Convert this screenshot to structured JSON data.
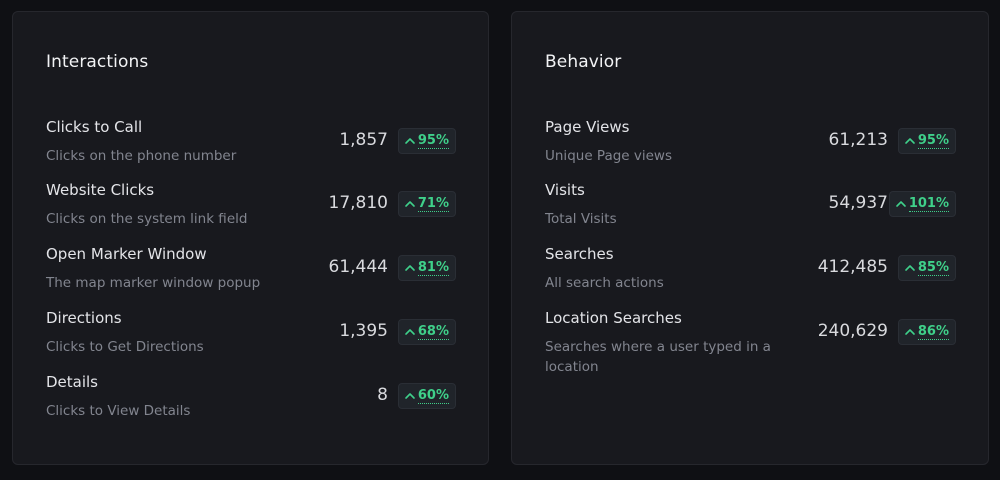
{
  "interactions": {
    "title": "Interactions",
    "rows": [
      {
        "title": "Clicks to Call",
        "desc": "Clicks on the phone number",
        "value": "1,857",
        "change": "95%"
      },
      {
        "title": "Website Clicks",
        "desc": "Clicks on the system link field",
        "value": "17,810",
        "change": "71%"
      },
      {
        "title": "Open Marker Window",
        "desc": "The map marker window popup",
        "value": "61,444",
        "change": "81%"
      },
      {
        "title": "Directions",
        "desc": "Clicks to Get Directions",
        "value": "1,395",
        "change": "68%"
      },
      {
        "title": "Details",
        "desc": "Clicks to View Details",
        "value": "8",
        "change": "60%"
      }
    ]
  },
  "behavior": {
    "title": "Behavior",
    "rows": [
      {
        "title": "Page Views",
        "desc": "Unique Page views",
        "value": "61,213",
        "change": "95%"
      },
      {
        "title": "Visits",
        "desc": "Total Visits",
        "value": "54,937",
        "change": "101%"
      },
      {
        "title": "Searches",
        "desc": "All search actions",
        "value": "412,485",
        "change": "85%"
      },
      {
        "title": "Location Searches",
        "desc": "Searches where a user typed in a location",
        "value": "240,629",
        "change": "86%"
      }
    ]
  },
  "colors": {
    "positive": "#3fd08a",
    "card_bg": "#18191e",
    "page_bg": "#0f1014"
  },
  "icons": {
    "trend": "chevron-up-icon"
  }
}
